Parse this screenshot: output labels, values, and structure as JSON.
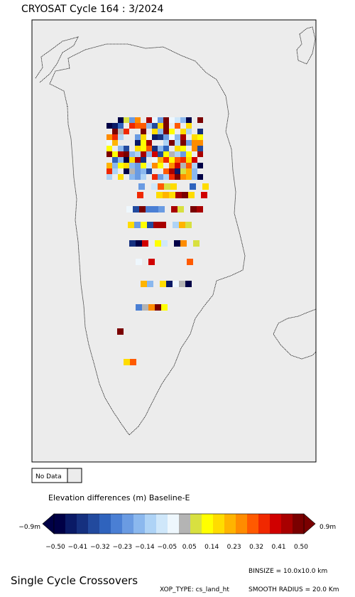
{
  "header": {
    "title": "CRYOSAT Cycle 164 : 3/2024"
  },
  "legend": {
    "no_data": "No Data"
  },
  "colorbar": {
    "title": "Elevation differences (m) Baseline-E",
    "min_label": "−0.9m",
    "max_label": "0.9m",
    "ticks": [
      "−0.50",
      "−0.41",
      "−0.32",
      "−0.23",
      "−0.14",
      "−0.05",
      "0.05",
      "0.14",
      "0.23",
      "0.32",
      "0.41",
      "0.50"
    ]
  },
  "footer": {
    "title": "Single Cycle Crossovers",
    "binsize": "BINSIZE = 10.0x10.0 km",
    "xop_type": "XOP_TYPE: cs_land_ht",
    "smooth_radius": "SMOOTH RADIUS = 20.0 Km"
  }
}
